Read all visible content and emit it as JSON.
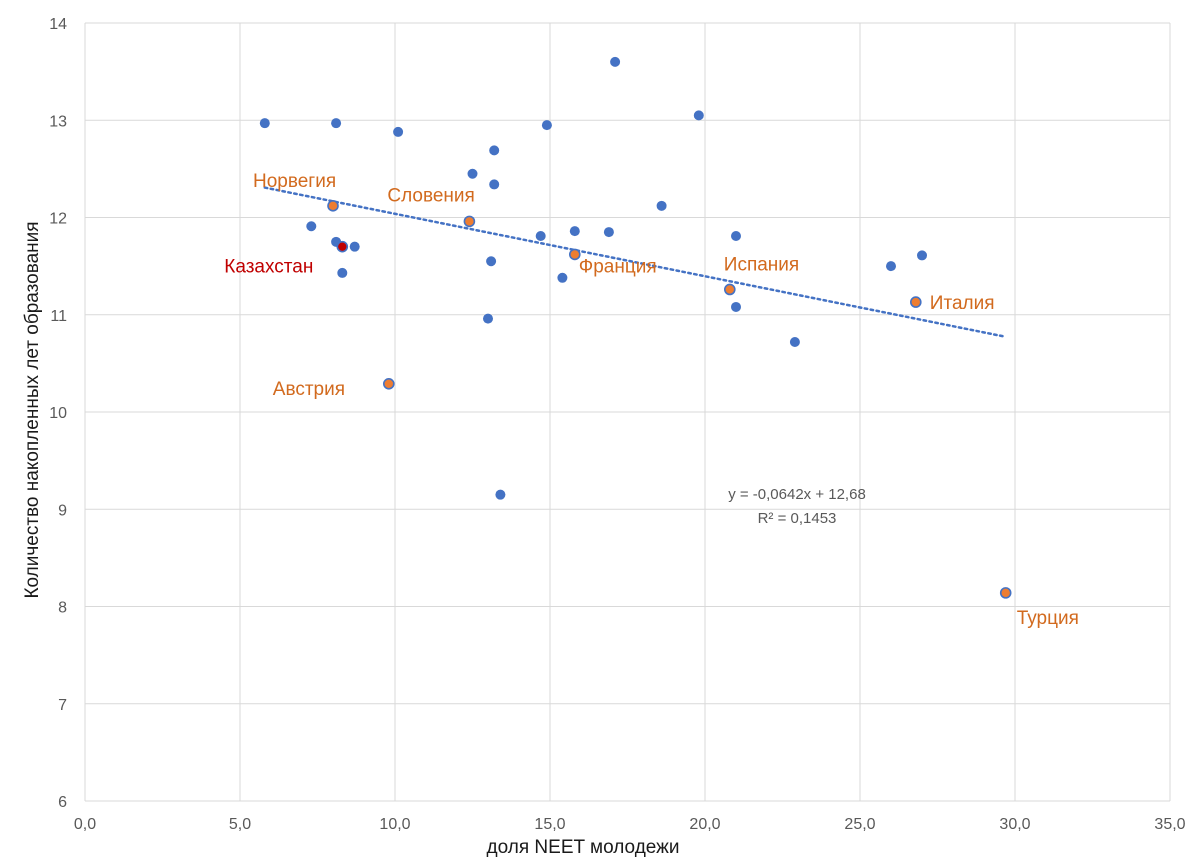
{
  "chart_data": {
    "type": "scatter",
    "xlabel": "доля NEET молодежи",
    "ylabel": "Количество накопленных лет образования",
    "xlim": [
      0,
      35
    ],
    "ylim": [
      6,
      14
    ],
    "x_ticks": [
      "0,0",
      "5,0",
      "10,0",
      "15,0",
      "20,0",
      "25,0",
      "30,0",
      "35,0"
    ],
    "y_ticks": [
      "6",
      "7",
      "8",
      "9",
      "10",
      "11",
      "12",
      "13",
      "14"
    ],
    "grid": true,
    "colors": {
      "default": "#4472c4",
      "highlight": "#ed7d31",
      "kazakhstan": "#c00000",
      "trendline": "#4472c4",
      "grid": "#d9d9d9"
    },
    "points": [
      {
        "x": 5.8,
        "y": 12.97
      },
      {
        "x": 8.1,
        "y": 12.97
      },
      {
        "x": 10.1,
        "y": 12.88
      },
      {
        "x": 17.1,
        "y": 13.6
      },
      {
        "x": 19.8,
        "y": 13.05
      },
      {
        "x": 14.9,
        "y": 12.95
      },
      {
        "x": 13.2,
        "y": 12.69
      },
      {
        "x": 12.5,
        "y": 12.45
      },
      {
        "x": 13.2,
        "y": 12.34
      },
      {
        "x": 18.6,
        "y": 12.12
      },
      {
        "x": 7.3,
        "y": 11.91
      },
      {
        "x": 8.1,
        "y": 11.75
      },
      {
        "x": 8.7,
        "y": 11.7
      },
      {
        "x": 8.3,
        "y": 11.43
      },
      {
        "x": 14.7,
        "y": 11.81
      },
      {
        "x": 15.8,
        "y": 11.86
      },
      {
        "x": 16.9,
        "y": 11.85
      },
      {
        "x": 21.0,
        "y": 11.81
      },
      {
        "x": 13.1,
        "y": 11.55
      },
      {
        "x": 15.4,
        "y": 11.38
      },
      {
        "x": 26.0,
        "y": 11.5
      },
      {
        "x": 27.0,
        "y": 11.61
      },
      {
        "x": 21.0,
        "y": 11.08
      },
      {
        "x": 13.0,
        "y": 10.96
      },
      {
        "x": 22.9,
        "y": 10.72
      },
      {
        "x": 13.4,
        "y": 9.15
      }
    ],
    "labeled_points": [
      {
        "name": "Норвегия",
        "x": 8.0,
        "y": 12.12,
        "kind": "highlight"
      },
      {
        "name": "Словения",
        "x": 12.4,
        "y": 11.96,
        "kind": "highlight"
      },
      {
        "name": "Казахстан",
        "x": 8.3,
        "y": 11.7,
        "kind": "kazakhstan"
      },
      {
        "name": "Франция",
        "x": 15.8,
        "y": 11.62,
        "kind": "highlight"
      },
      {
        "name": "Испания",
        "x": 20.8,
        "y": 11.26,
        "kind": "highlight"
      },
      {
        "name": "Италия",
        "x": 26.8,
        "y": 11.13,
        "kind": "highlight"
      },
      {
        "name": "Австрия",
        "x": 9.8,
        "y": 10.29,
        "kind": "highlight"
      },
      {
        "name": "Турция",
        "x": 29.7,
        "y": 8.14,
        "kind": "highlight"
      }
    ],
    "trendline": {
      "slope": -0.0642,
      "intercept": 12.68,
      "x_range": [
        5.8,
        29.7
      ],
      "style": "dotted"
    },
    "equation": "y = -0,0642x + 12,68",
    "r_squared": "R² = 0,1453"
  }
}
